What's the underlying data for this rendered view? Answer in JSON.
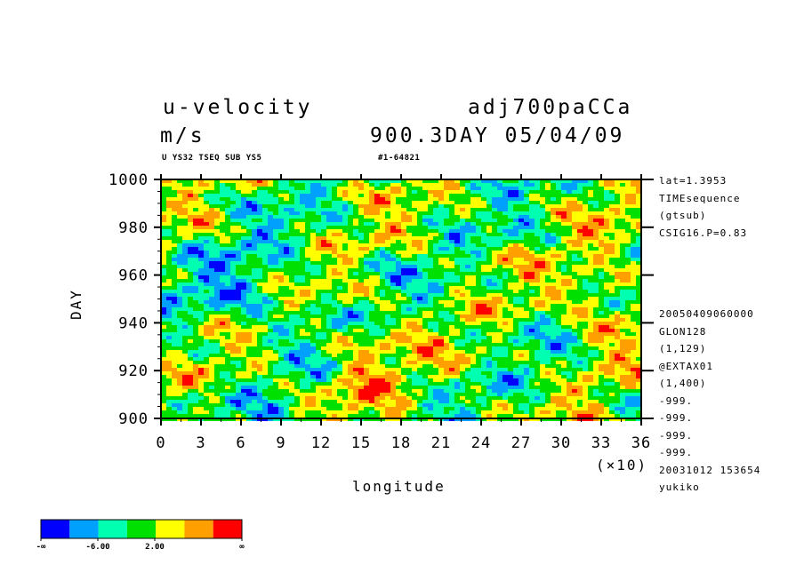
{
  "chart_data": {
    "type": "heatmap",
    "title_left": "u-velocity",
    "title_right": "adj700paCCa",
    "units": "m/s",
    "time_label": "900.3DAY 05/04/09",
    "subtitle_left": "U YS32 TSEQ SUB YS5",
    "subtitle_right": "#1-64821",
    "xlabel": "longitude",
    "ylabel": "DAY",
    "x_multiplier": "(×10)",
    "xlim": [
      0,
      36
    ],
    "ylim": [
      900,
      1000
    ],
    "x_ticks": [
      "0",
      "3",
      "6",
      "9",
      "12",
      "15",
      "18",
      "21",
      "24",
      "27",
      "30",
      "33",
      "36"
    ],
    "y_ticks": [
      "900",
      "920",
      "940",
      "960",
      "980",
      "1000"
    ],
    "colorscale": [
      "#0000ff",
      "#00a0ff",
      "#00ffb0",
      "#00e000",
      "#ffff00",
      "#ffa000",
      "#ff0000"
    ],
    "colorbar_labels": [
      "-∞",
      "-6.00",
      "2.00",
      "∞"
    ],
    "info_top": [
      "lat=1.3953",
      "TIMEsequence",
      "(gtsub)",
      "CSIG16.P=0.83"
    ],
    "info_bottom": [
      "20050409060000",
      "GLON128",
      "(1,129)",
      "@EXTAX01",
      "(1,400)",
      "-999.",
      "-999.",
      "-999.",
      "-999.",
      "20031012 153654",
      "yukiko"
    ]
  }
}
